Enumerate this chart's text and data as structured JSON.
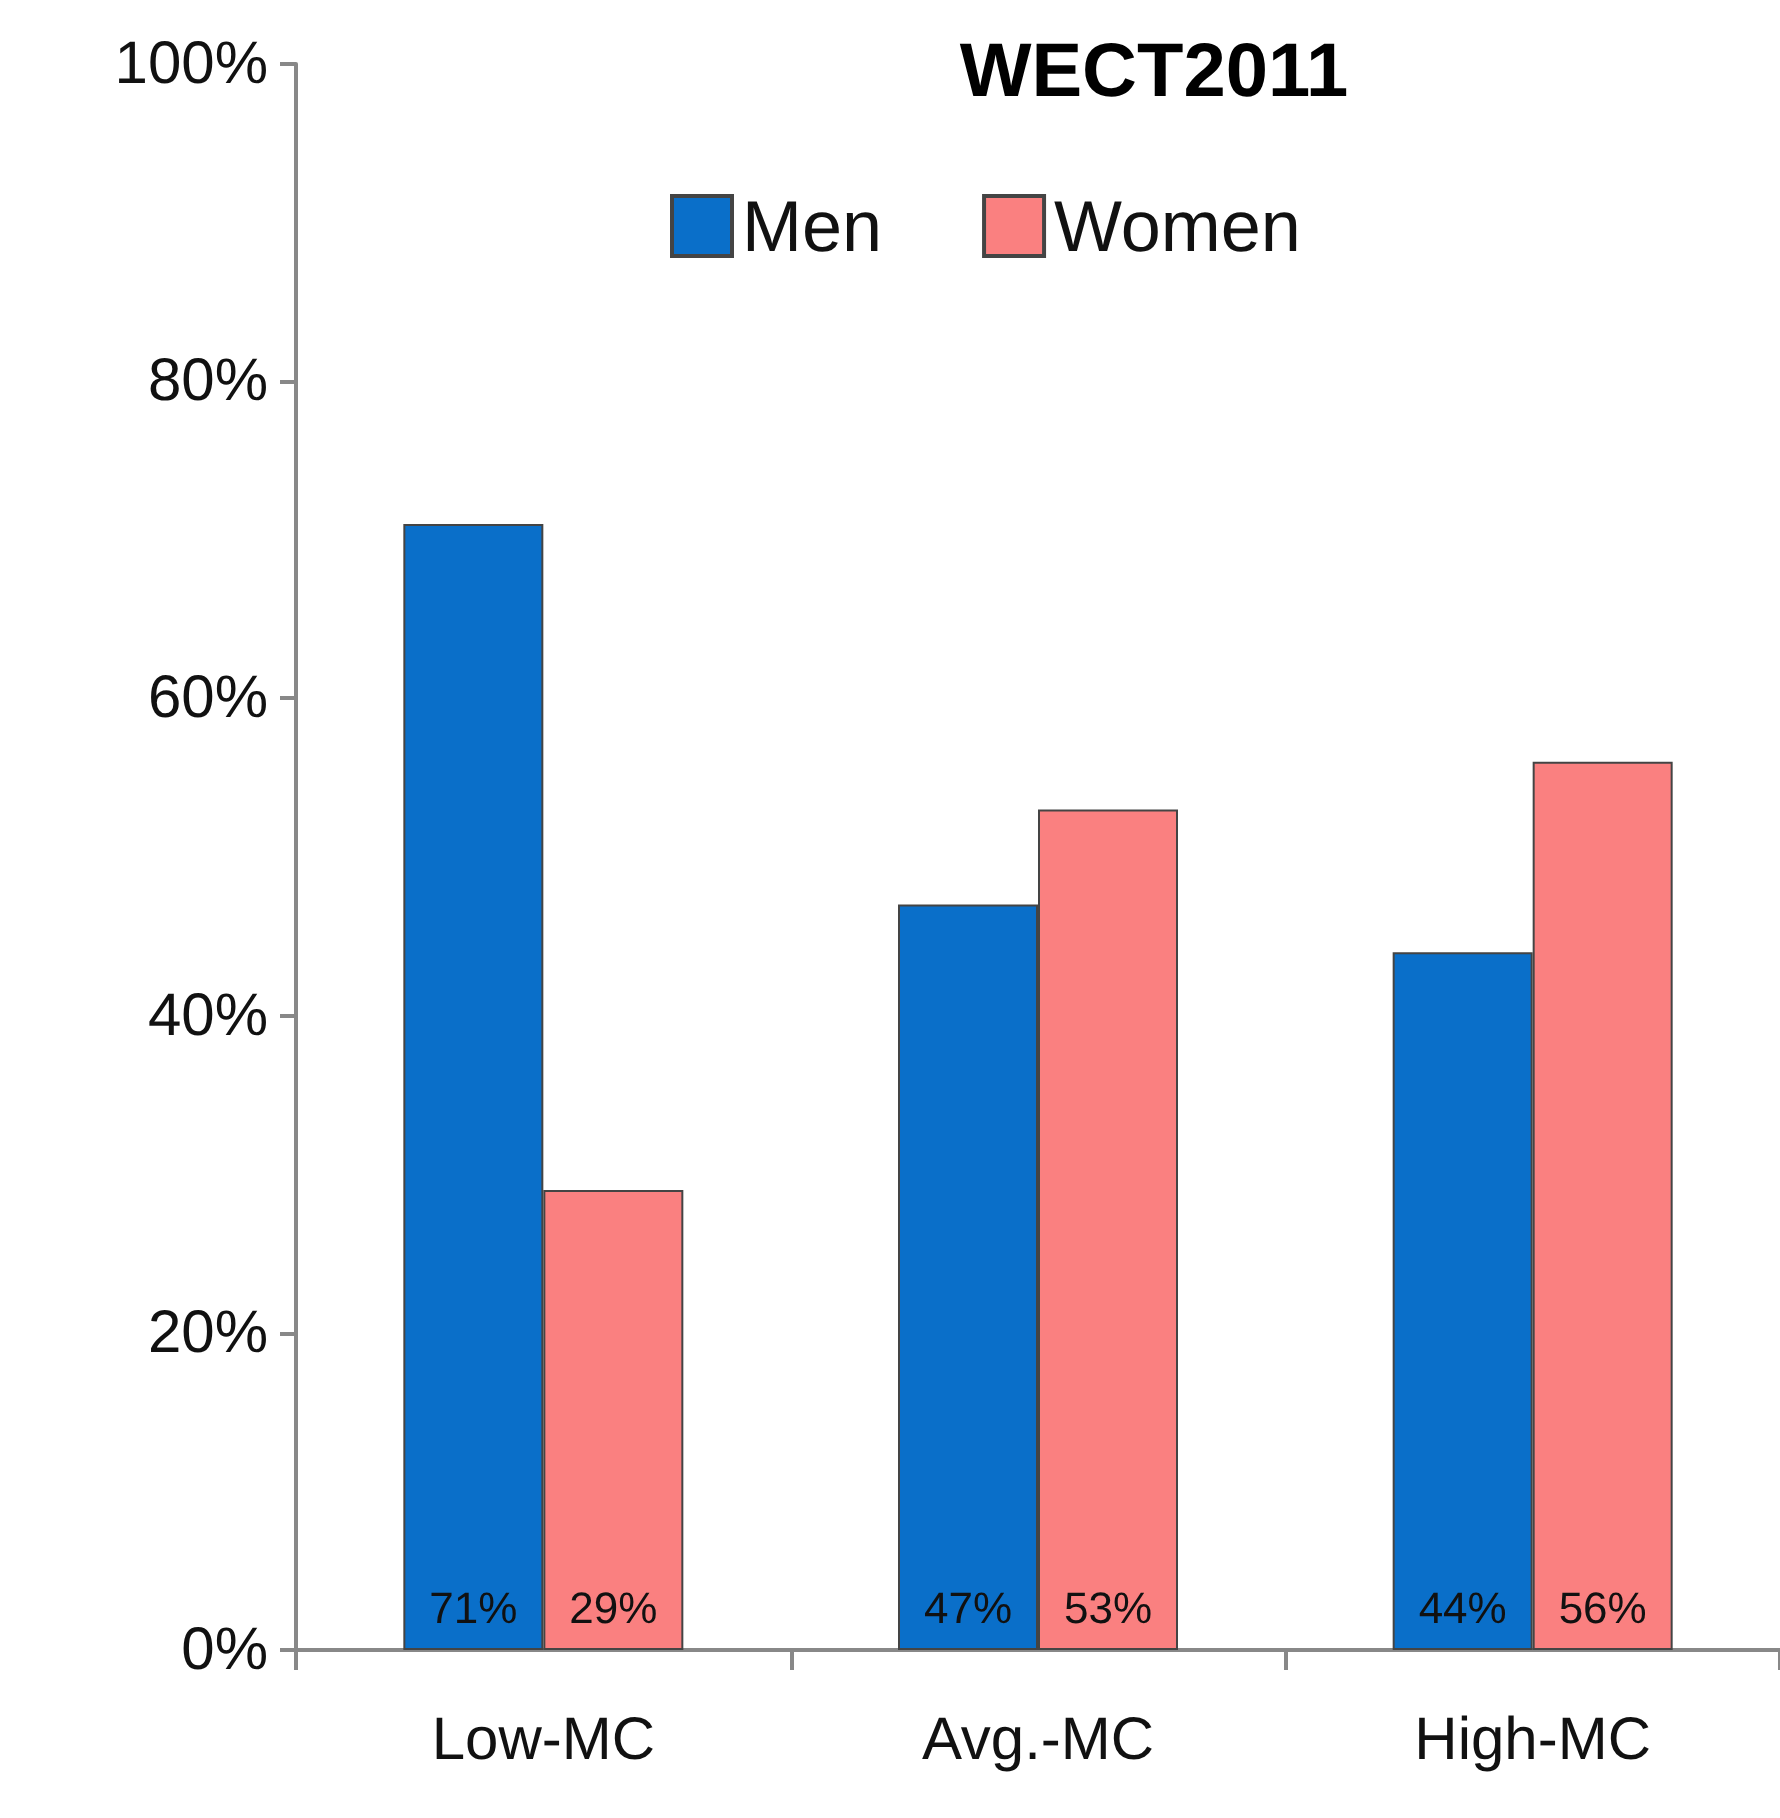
{
  "chart_data": {
    "type": "bar",
    "title": "WECT2011",
    "categories": [
      "Low-MC",
      "Avg.-MC",
      "High-MC"
    ],
    "series": [
      {
        "name": "Men",
        "color": "#0a6fc9",
        "values": [
          71,
          47,
          44
        ],
        "value_labels": [
          "71%",
          "47%",
          "44%"
        ]
      },
      {
        "name": "Women",
        "color": "#fa8080",
        "values": [
          29,
          53,
          56
        ],
        "value_labels": [
          "29%",
          "53%",
          "56%"
        ]
      }
    ],
    "ylim": [
      0,
      100
    ],
    "yticks": [
      {
        "value": 0,
        "label": "0%"
      },
      {
        "value": 20,
        "label": "20%"
      },
      {
        "value": 40,
        "label": "40%"
      },
      {
        "value": 60,
        "label": "60%"
      },
      {
        "value": 80,
        "label": "80%"
      },
      {
        "value": 100,
        "label": "100%"
      }
    ],
    "grid": false,
    "legend": "top"
  }
}
